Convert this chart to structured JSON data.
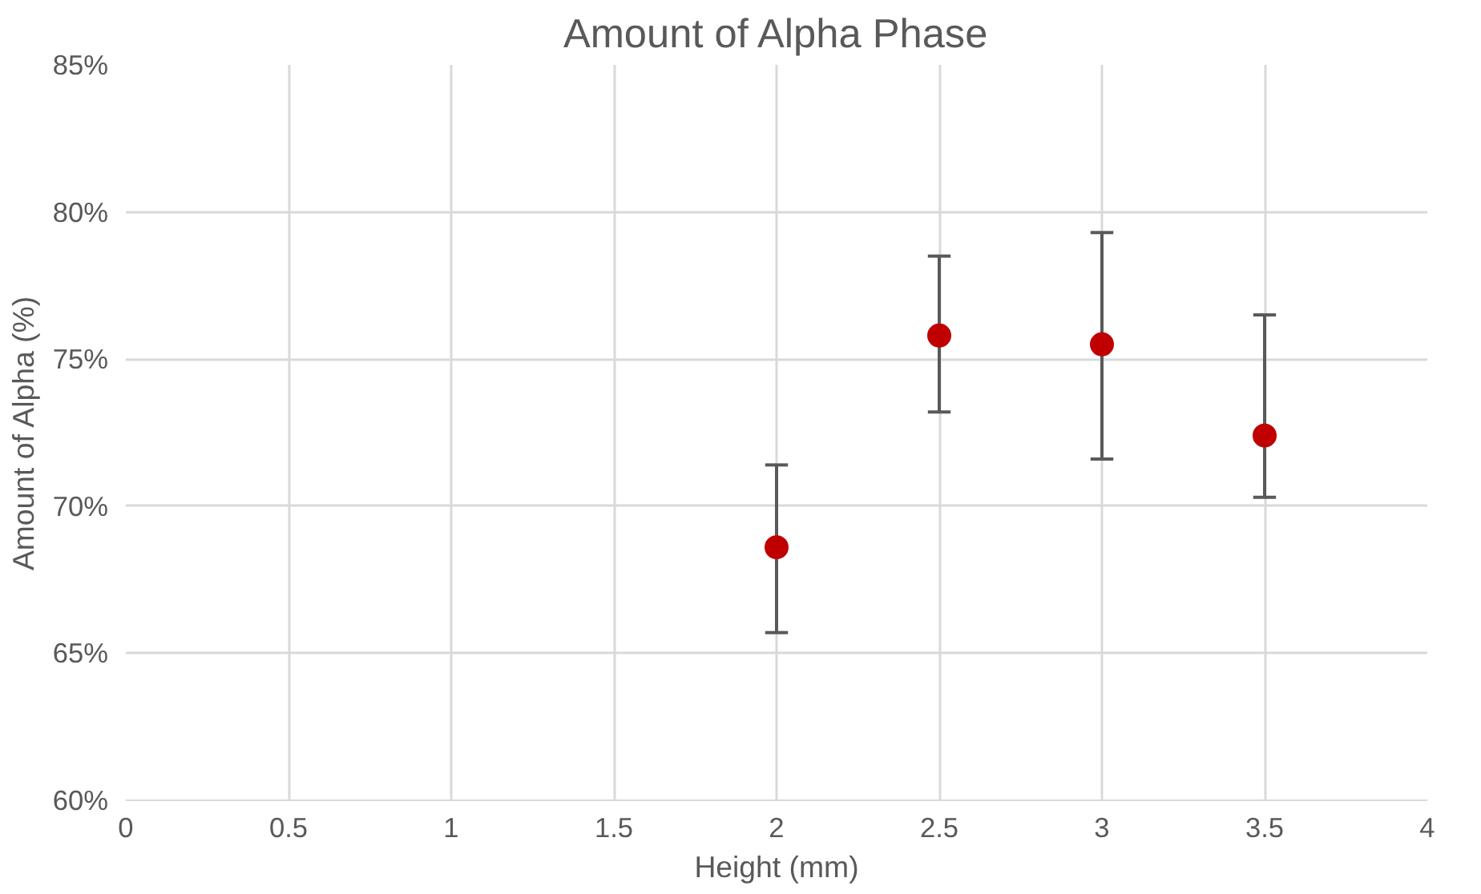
{
  "chart_data": {
    "type": "scatter",
    "title": "Amount of Alpha Phase",
    "xlabel": "Height (mm)",
    "ylabel": "Amount of Alpha (%)",
    "x": [
      2,
      2.5,
      3,
      3.5
    ],
    "series": [
      {
        "color": "#c00000",
        "values": [
          68.6,
          75.8,
          75.5,
          72.4
        ],
        "errors": [
          [
            65.7,
            71.4
          ],
          [
            73.2,
            78.5
          ],
          [
            71.6,
            79.3
          ],
          [
            70.3,
            76.5
          ]
        ]
      }
    ],
    "xlim": [
      0,
      4
    ],
    "xticks": [
      0,
      0.5,
      1,
      1.5,
      2,
      2.5,
      3,
      3.5,
      4
    ],
    "ylim": [
      60,
      85
    ],
    "yticks": [
      {
        "value": 60,
        "label": "60%"
      },
      {
        "value": 65,
        "label": "65%"
      },
      {
        "value": 70,
        "label": "70%"
      },
      {
        "value": 75,
        "label": "75%"
      },
      {
        "value": 80,
        "label": "80%"
      },
      {
        "value": 85,
        "label": "85%"
      }
    ],
    "grid": true,
    "marker": "circle"
  }
}
